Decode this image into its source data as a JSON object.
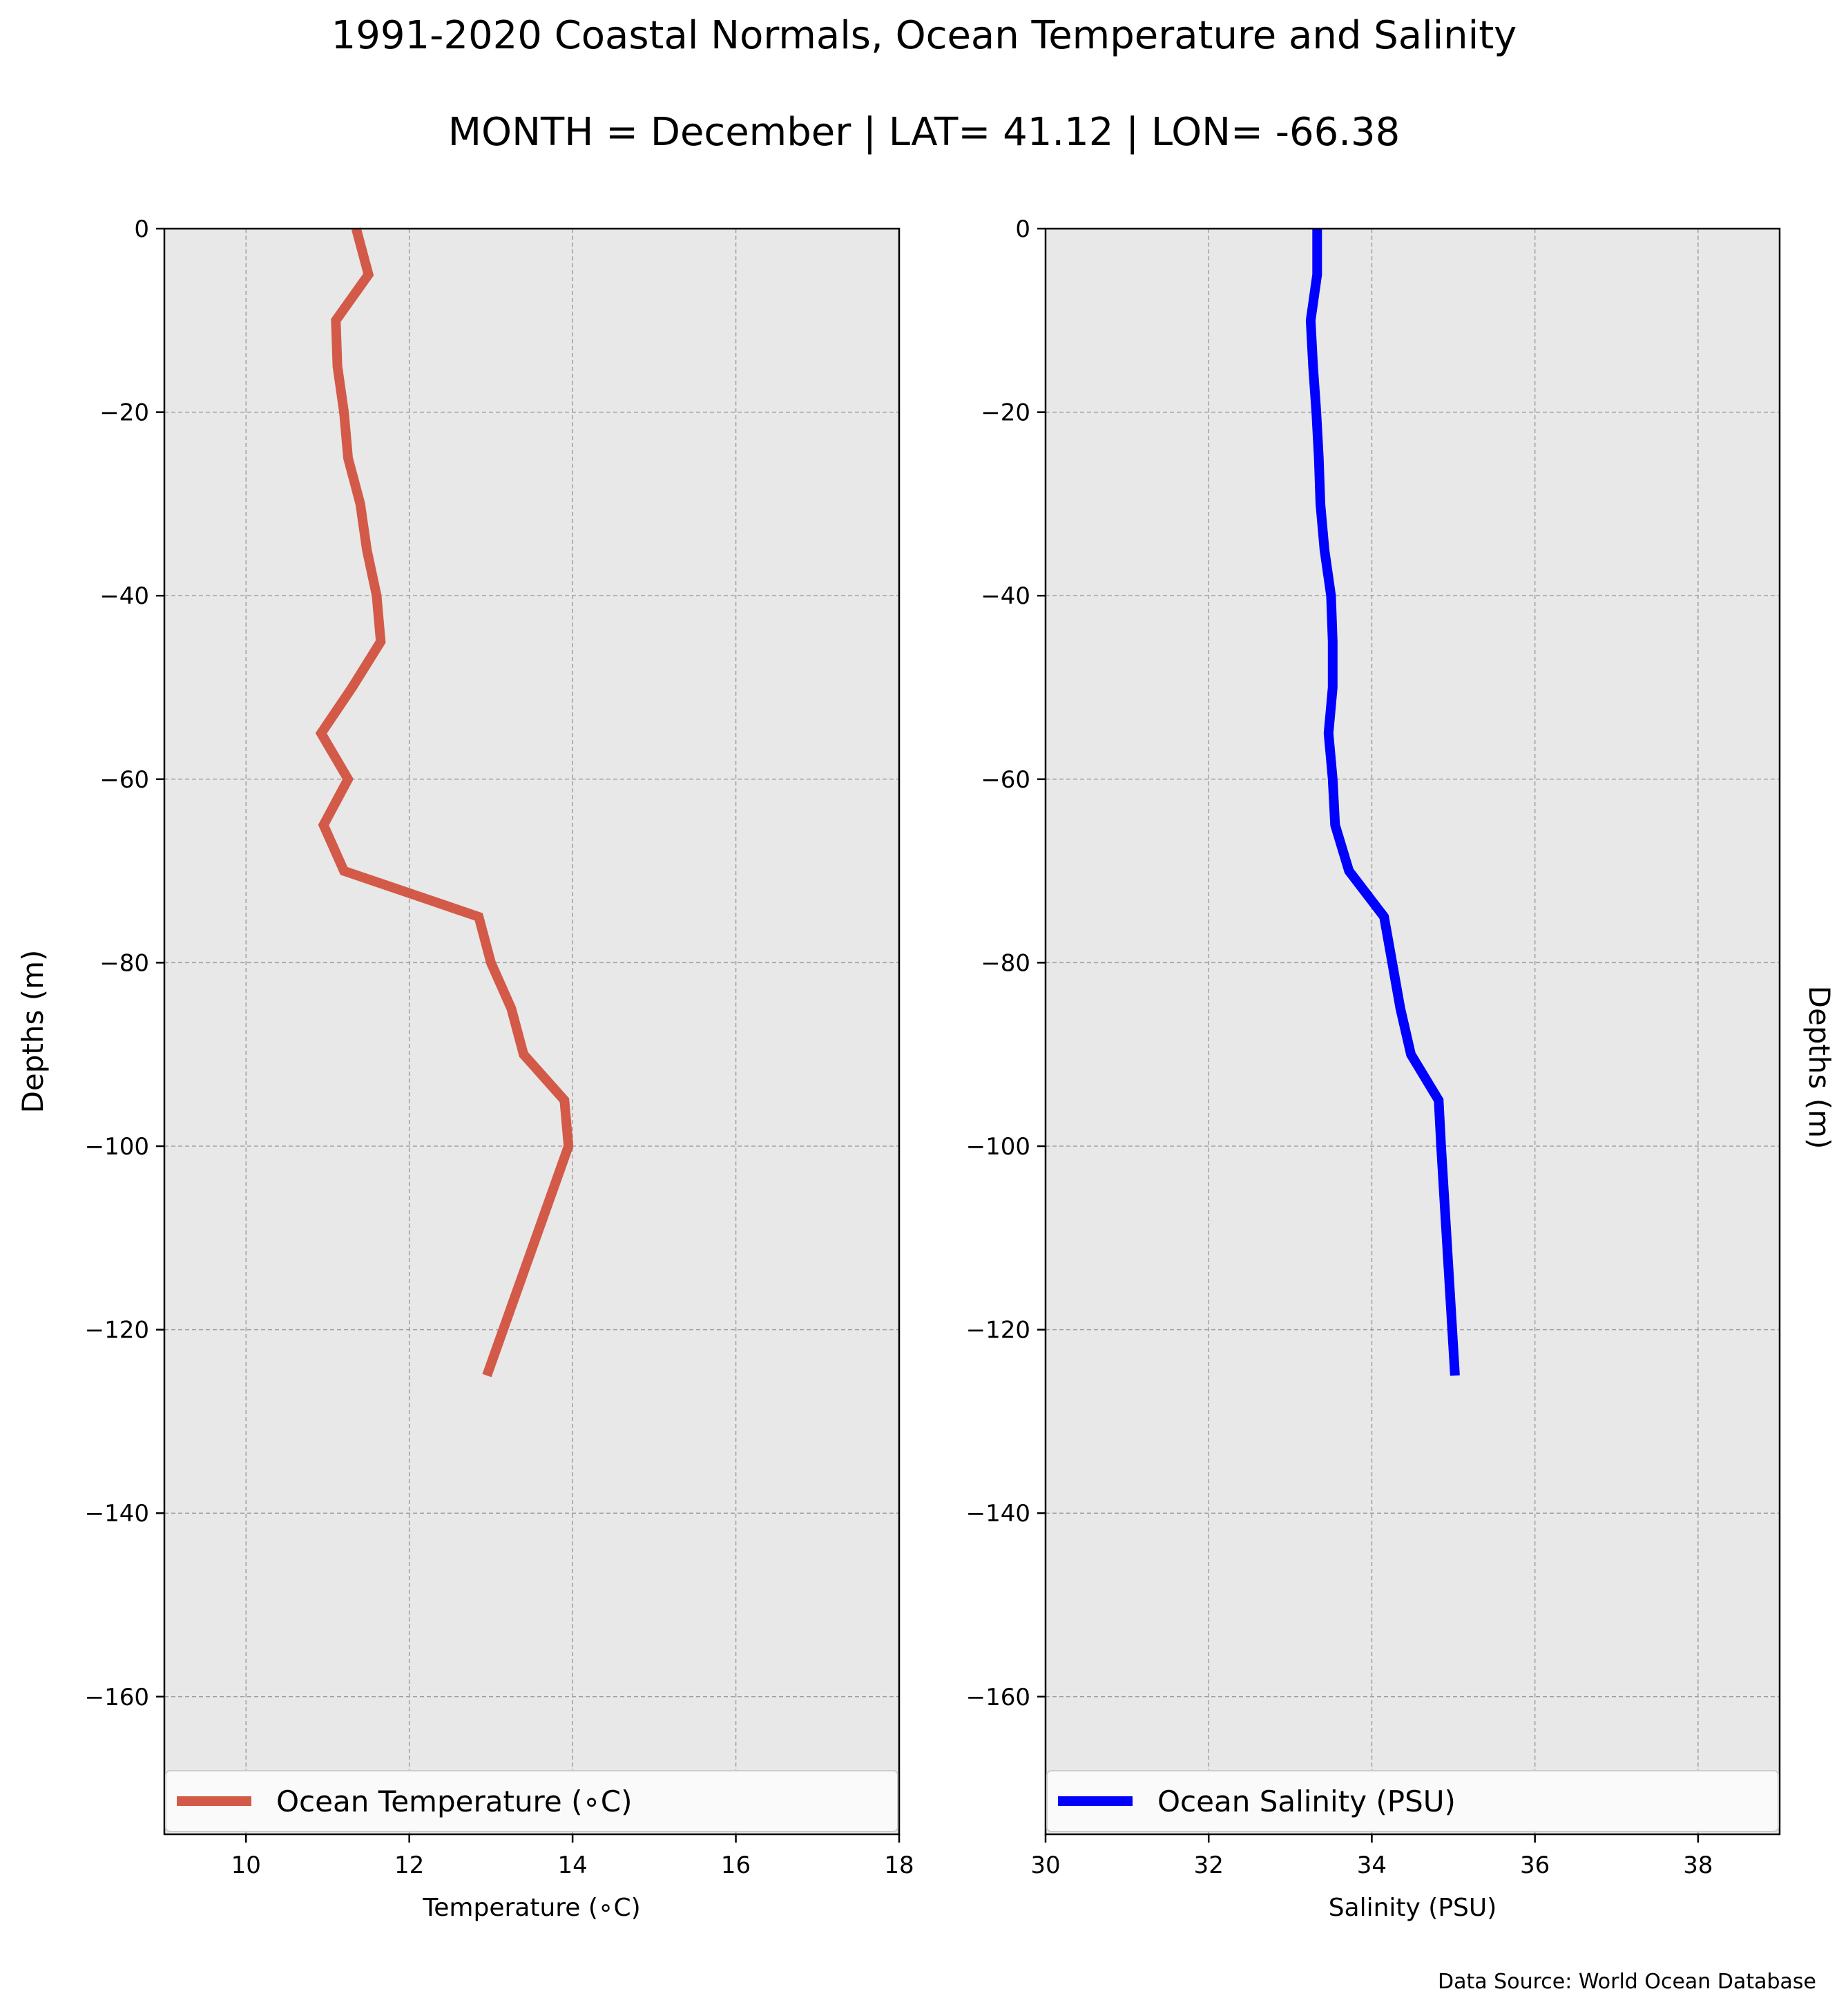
{
  "title": "1991-2020 Coastal Normals, Ocean Temperature and Salinity",
  "subtitle": "MONTH = December | LAT= 41.12 | LON= -66.38",
  "source": "Data Source: World Ocean Database",
  "colors": {
    "background": "#ffffff",
    "plot_bg": "#e8e8e8",
    "grid": "#a0a0a0",
    "temperature": "#d35a48",
    "salinity": "#0000ff"
  },
  "chart_data": [
    {
      "type": "line",
      "xlabel": "Temperature ($^\\circ$C)",
      "xlabel_display": "Temperature (∘C)",
      "ylabel": "Depths (m)",
      "xlim": [
        9,
        18
      ],
      "ylim": [
        -175,
        0
      ],
      "x_ticks": [
        10,
        12,
        14,
        16,
        18
      ],
      "x_tick_labels": [
        "10",
        "12",
        "14",
        "16",
        "18"
      ],
      "y_ticks": [
        0,
        -20,
        -40,
        -60,
        -80,
        -100,
        -120,
        -140,
        -160
      ],
      "y_tick_labels": [
        "0",
        "−20",
        "−40",
        "−60",
        "−80",
        "−100",
        "−120",
        "−140",
        "−160"
      ],
      "grid": true,
      "legend_position": "bottom",
      "series": [
        {
          "name": "Ocean Temperature (∘C)",
          "color": "#d35a48",
          "depth": [
            0,
            -5,
            -10,
            -15,
            -20,
            -25,
            -30,
            -35,
            -40,
            -45,
            -50,
            -55,
            -60,
            -65,
            -70,
            -75,
            -80,
            -85,
            -90,
            -95,
            -100,
            -125
          ],
          "values": [
            11.35,
            11.5,
            11.1,
            11.12,
            11.2,
            11.25,
            11.4,
            11.48,
            11.6,
            11.65,
            11.3,
            10.92,
            11.25,
            10.95,
            11.2,
            12.85,
            13.0,
            13.25,
            13.4,
            13.9,
            13.95,
            12.95
          ]
        }
      ]
    },
    {
      "type": "line",
      "xlabel": "Salinity (PSU)",
      "ylabel": "Depths (m)",
      "xlim": [
        30,
        39
      ],
      "ylim": [
        -175,
        0
      ],
      "x_ticks": [
        30,
        32,
        34,
        36,
        38
      ],
      "x_tick_labels": [
        "30",
        "32",
        "34",
        "36",
        "38"
      ],
      "y_ticks": [
        0,
        -20,
        -40,
        -60,
        -80,
        -100,
        -120,
        -140,
        -160
      ],
      "y_tick_labels": [
        "0",
        "−20",
        "−40",
        "−60",
        "−80",
        "−100",
        "−120",
        "−140",
        "−160"
      ],
      "grid": true,
      "legend_position": "bottom",
      "series": [
        {
          "name": "Ocean Salinity (PSU)",
          "color": "#0000ff",
          "depth": [
            0,
            -5,
            -10,
            -15,
            -20,
            -25,
            -30,
            -35,
            -40,
            -45,
            -50,
            -55,
            -60,
            -65,
            -70,
            -75,
            -80,
            -85,
            -90,
            -95,
            -100,
            -125
          ],
          "values": [
            33.33,
            33.33,
            33.25,
            33.28,
            33.32,
            33.35,
            33.37,
            33.42,
            33.5,
            33.52,
            33.52,
            33.47,
            33.52,
            33.55,
            33.72,
            34.15,
            34.25,
            34.35,
            34.48,
            34.82,
            34.85,
            35.02
          ]
        }
      ]
    }
  ]
}
